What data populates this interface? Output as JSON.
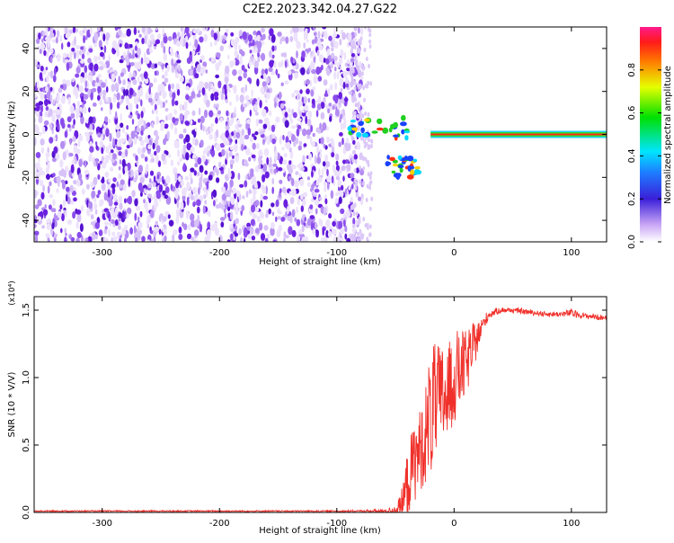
{
  "title": "C2E2.2023.342.04.27.G22",
  "colors": {
    "noise": "#7a1fe8",
    "noise_light": "#c9a6f5",
    "snr_line": "#f0302a",
    "center_line_hot": "#ff2a1a"
  },
  "chart_data": [
    {
      "type": "heatmap",
      "title": "C2E2.2023.342.04.27.G22",
      "xlabel": "Height of straight line (km)",
      "ylabel": "Frequency (Hz)",
      "xlim": [
        -358,
        130
      ],
      "ylim": [
        -50,
        50
      ],
      "x_ticks": [
        -300,
        -200,
        -100,
        0,
        100
      ],
      "y_ticks": [
        40,
        20,
        0,
        -20,
        -40
      ],
      "x_tick_labels": [
        "-300",
        "-200",
        "-100",
        "0",
        "100"
      ],
      "y_tick_labels": [
        "40",
        "20",
        "0",
        "-20",
        "-40"
      ],
      "noise_region_x": [
        -358,
        -78
      ],
      "signal_features": [
        {
          "x_range": [
            -20,
            130
          ],
          "frequency": 0,
          "amplitude": 0.95
        },
        {
          "x_range": [
            -90,
            -40
          ],
          "frequency": 3,
          "amplitude": 0.5
        },
        {
          "x_range": [
            -60,
            -30
          ],
          "frequency": -15,
          "amplitude": 0.4
        }
      ],
      "colorbar": {
        "label": "Normalized spectral amplitude",
        "range": [
          0,
          1
        ],
        "ticks": [
          0.0,
          0.2,
          0.4,
          0.6,
          0.8
        ],
        "tick_labels": [
          "0.0",
          "0.2",
          "0.4",
          "0.6",
          "0.8"
        ]
      }
    },
    {
      "type": "line",
      "xlabel": "Height of straight line (km)",
      "ylabel": "SNR (10 * V/V)",
      "y_multiplier_label": "(x10⁴)",
      "xlim": [
        -358,
        130
      ],
      "ylim": [
        0,
        1.6
      ],
      "x_ticks": [
        -300,
        -200,
        -100,
        0,
        100
      ],
      "x_tick_labels": [
        "-300",
        "-200",
        "-100",
        "0",
        "100"
      ],
      "y_ticks": [
        0.0,
        0.5,
        1.0,
        1.5
      ],
      "y_tick_labels": [
        "0.0",
        "0.5",
        "1.0",
        "1.5"
      ],
      "series": [
        {
          "x": [
            -358,
            -300,
            -200,
            -100,
            -60,
            -50,
            -45,
            -40,
            -35,
            -30,
            -25,
            -20,
            -15,
            -10,
            -5,
            0,
            5,
            10,
            15,
            20,
            25,
            30,
            40,
            50,
            60,
            70,
            80,
            90,
            100,
            110,
            120,
            130
          ],
          "y": [
            0.01,
            0.01,
            0.01,
            0.01,
            0.01,
            0.02,
            0.05,
            0.2,
            0.35,
            0.45,
            0.55,
            0.75,
            0.8,
            0.85,
            0.9,
            1.0,
            1.05,
            1.1,
            1.2,
            1.3,
            1.4,
            1.47,
            1.5,
            1.5,
            1.49,
            1.48,
            1.47,
            1.47,
            1.48,
            1.46,
            1.45,
            1.44
          ],
          "noise_amplitude": [
            0,
            0,
            0,
            0,
            0.01,
            0.03,
            0.1,
            0.25,
            0.3,
            0.3,
            0.35,
            0.5,
            0.45,
            0.4,
            0.35,
            0.35,
            0.3,
            0.25,
            0.2,
            0.12,
            0.06,
            0.03,
            0.02,
            0.02,
            0.02,
            0.02,
            0.02,
            0.02,
            0.03,
            0.02,
            0.02,
            0.02
          ]
        }
      ]
    }
  ]
}
